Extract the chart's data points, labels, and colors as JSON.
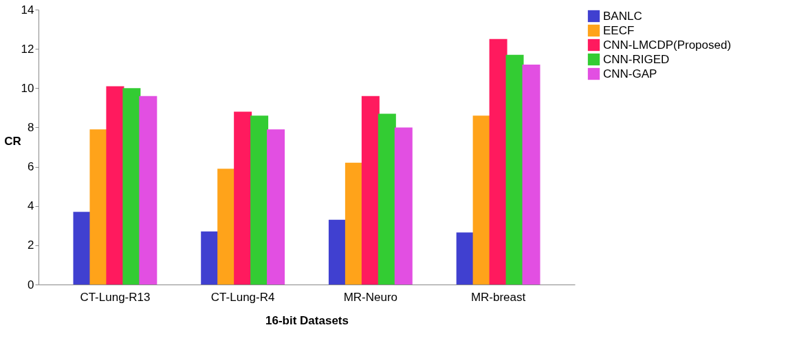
{
  "chart_data": {
    "type": "bar",
    "xlabel": "16-bit Datasets",
    "ylabel": "CR",
    "categories": [
      "CT-Lung-R13",
      "CT-Lung-R4",
      "MR-Neuro",
      "MR-breast"
    ],
    "series": [
      {
        "name": "BANLC",
        "color": "#4040d0",
        "values": [
          3.7,
          2.7,
          3.3,
          2.65
        ]
      },
      {
        "name": "EECF",
        "color": "#ffa31a",
        "values": [
          7.9,
          5.9,
          6.2,
          8.6
        ]
      },
      {
        "name": "CNN-LMCDP(Proposed)",
        "color": "#ff1a5e",
        "values": [
          10.1,
          8.8,
          9.6,
          12.5
        ]
      },
      {
        "name": "CNN-RIGED",
        "color": "#33cc33",
        "values": [
          10.0,
          8.6,
          8.7,
          11.7
        ]
      },
      {
        "name": "CNN-GAP",
        "color": "#e24fe2",
        "values": [
          9.6,
          7.9,
          8.0,
          11.2
        ]
      }
    ],
    "ylim": [
      0,
      14
    ],
    "yticks": [
      0,
      2,
      4,
      6,
      8,
      10,
      12,
      14
    ],
    "grid": false,
    "legend": "right"
  }
}
